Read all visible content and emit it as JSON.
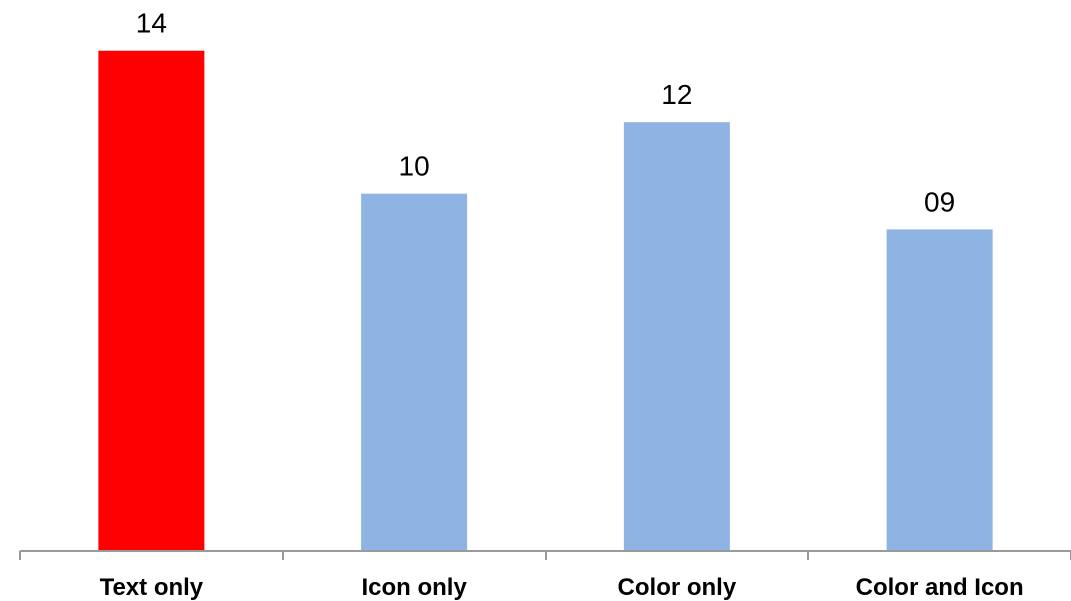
{
  "chart_data": {
    "type": "bar",
    "categories": [
      "Text only",
      "Icon only",
      "Color only",
      "Color and Icon"
    ],
    "values": [
      14,
      10,
      12,
      9
    ],
    "data_labels": [
      "14",
      "10",
      "12",
      "09"
    ],
    "colors": [
      "#ff0000",
      "#8fb3e2",
      "#8fb3e2",
      "#8fb3e2"
    ],
    "ylim": [
      0,
      14.3
    ],
    "grid": false,
    "legend": "none",
    "title": "",
    "xlabel": "",
    "ylabel": ""
  }
}
